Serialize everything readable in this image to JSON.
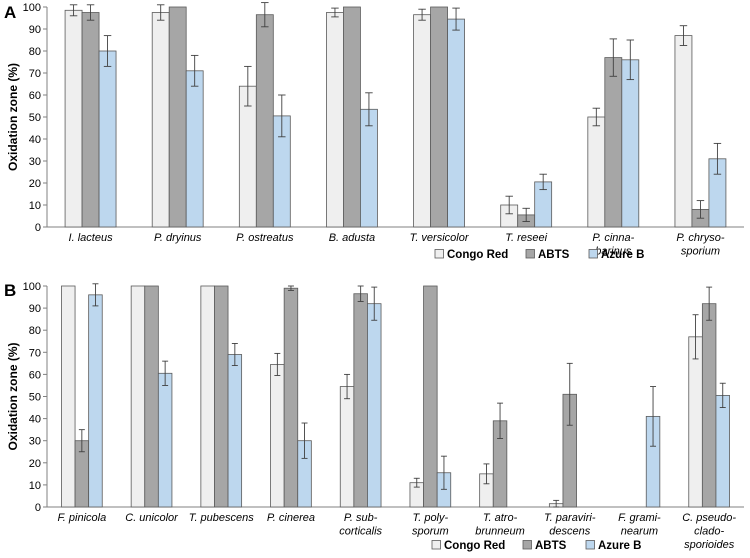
{
  "chart_data": [
    {
      "type": "bar",
      "panel": "A",
      "ylabel": "Oxidation zone (%)",
      "ylim": [
        0,
        100
      ],
      "yticks": [
        0,
        10,
        20,
        30,
        40,
        50,
        60,
        70,
        80,
        90,
        100
      ],
      "categories": [
        [
          "I. lacteus"
        ],
        [
          "P. dryinus"
        ],
        [
          "P. ostreatus"
        ],
        [
          "B. adusta"
        ],
        [
          "T. versicolor"
        ],
        [
          "T. reseei"
        ],
        [
          "P. cinna-",
          "barinus"
        ],
        [
          "P. chryso-",
          "sporium"
        ]
      ],
      "series": [
        {
          "name": "Congo Red",
          "values": [
            98.5,
            97.5,
            64,
            97.5,
            96.5,
            10,
            50,
            87
          ],
          "errors": [
            2.5,
            3.5,
            9,
            2,
            2.5,
            4,
            4,
            4.5
          ]
        },
        {
          "name": "ABTS",
          "values": [
            97.5,
            100,
            96.5,
            100,
            100,
            5.5,
            77,
            8
          ],
          "errors": [
            3.5,
            0,
            5.5,
            0,
            0,
            3,
            8.5,
            4
          ]
        },
        {
          "name": "Azure B",
          "values": [
            80,
            71,
            50.5,
            53.5,
            94.5,
            20.5,
            76,
            31
          ],
          "errors": [
            7,
            7,
            9.5,
            7.5,
            5,
            3.5,
            9,
            7
          ]
        }
      ],
      "legend_position": "bottom-right"
    },
    {
      "type": "bar",
      "panel": "B",
      "ylabel": "Oxidation zone (%)",
      "ylim": [
        0,
        100
      ],
      "yticks": [
        0,
        10,
        20,
        30,
        40,
        50,
        60,
        70,
        80,
        90,
        100
      ],
      "categories": [
        [
          "F. pinicola"
        ],
        [
          "C. unicolor"
        ],
        [
          "T. pubescens"
        ],
        [
          "P. cinerea"
        ],
        [
          "P. sub-",
          "corticalis"
        ],
        [
          "T. poly-",
          "sporum"
        ],
        [
          "T. atro-",
          "brunneum"
        ],
        [
          "T. paraviri-",
          "descens"
        ],
        [
          "F. grami-",
          "nearum"
        ],
        [
          "C. pseudo-",
          "clado-",
          "sporioides"
        ]
      ],
      "series": [
        {
          "name": "Congo Red",
          "values": [
            100,
            100,
            100,
            64.5,
            54.5,
            11,
            15,
            1.5,
            0,
            77
          ],
          "errors": [
            0,
            0,
            0,
            5,
            5.5,
            2,
            4.5,
            1.5,
            0,
            10
          ]
        },
        {
          "name": "ABTS",
          "values": [
            30,
            100,
            100,
            99,
            96.5,
            100,
            39,
            51,
            0,
            92
          ],
          "errors": [
            5,
            0,
            0,
            1,
            3.5,
            0,
            8,
            14,
            0,
            7.5
          ]
        },
        {
          "name": "Azure B",
          "values": [
            96,
            60.5,
            69,
            30,
            92,
            15.5,
            0,
            0,
            41,
            50.5
          ],
          "errors": [
            5,
            5.5,
            5,
            8,
            7.5,
            7.5,
            0,
            0,
            13.5,
            5.5
          ]
        }
      ],
      "legend_position": "bottom-right"
    }
  ],
  "colors": {
    "Congo Red": "#efefef",
    "ABTS": "#a6a6a6",
    "Azure B": "#bdd7ee",
    "bar_stroke": "#5a5a5a",
    "axis": "#808080",
    "error": "#404040"
  }
}
